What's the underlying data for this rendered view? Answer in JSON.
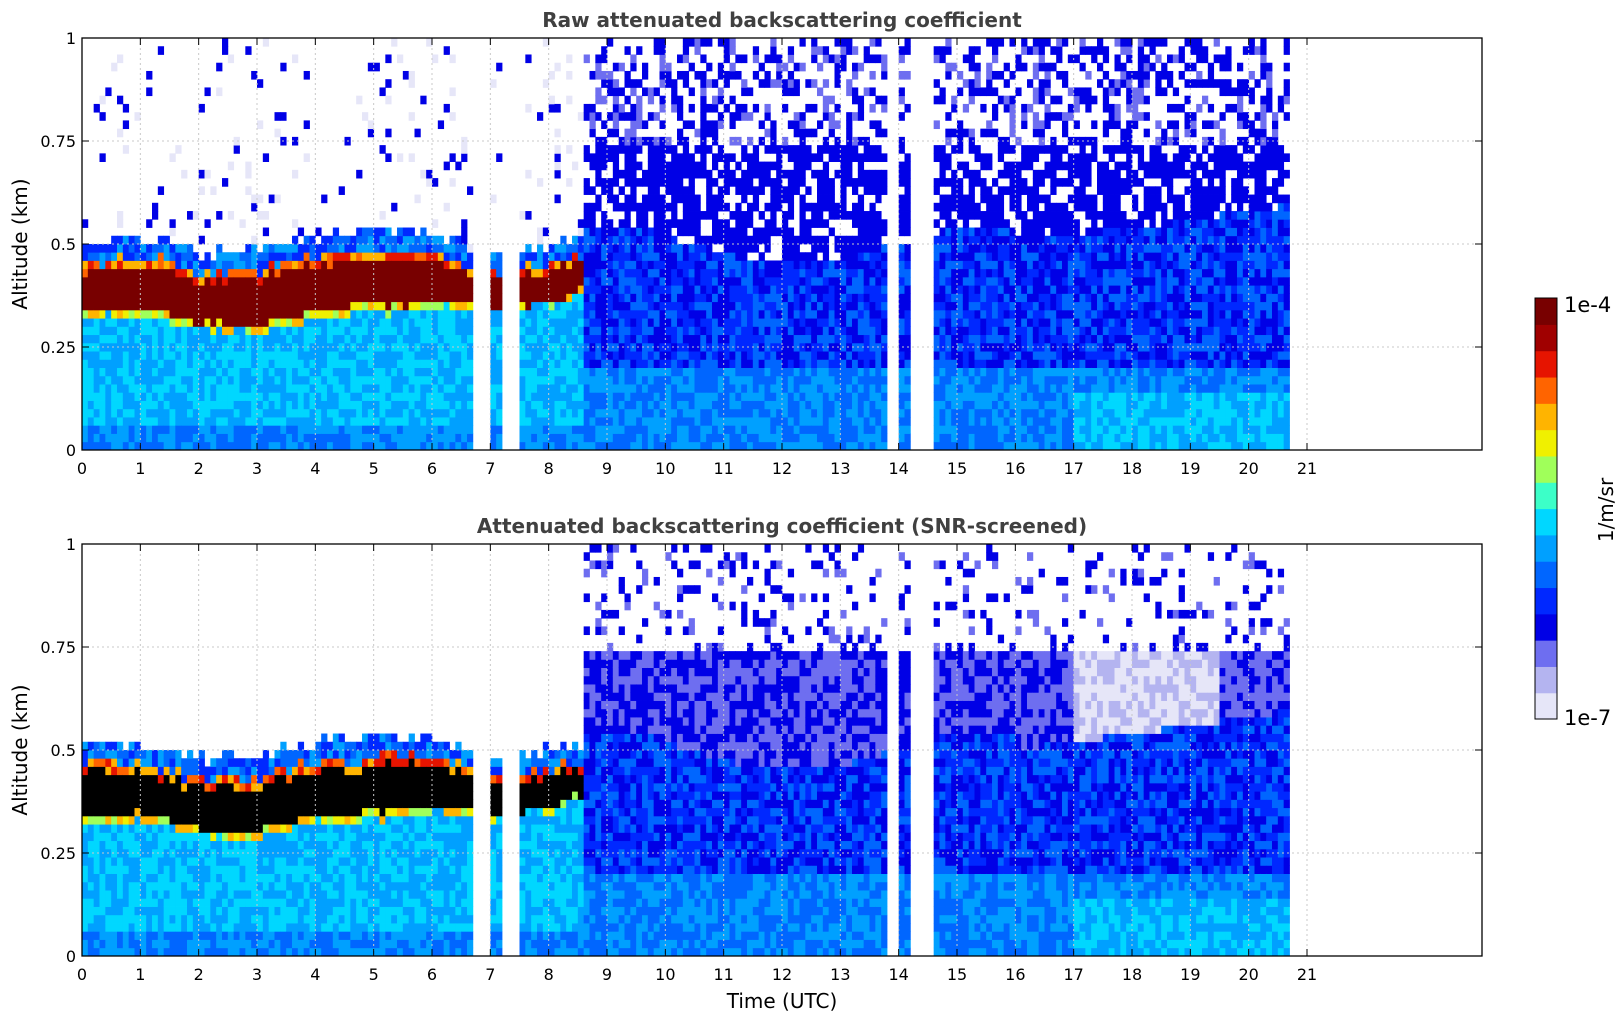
{
  "colors": {
    "nan": "#ffffff",
    "grid": "#c8c8c8",
    "title": "#404040",
    "above_scale": "#000000"
  },
  "chart_data": [
    {
      "type": "heatmap",
      "title": "Raw attenuated backscattering coefficient",
      "xlabel": "",
      "ylabel": "Altitude (km)",
      "xlim": [
        0,
        24
      ],
      "ylim": [
        0,
        1
      ],
      "xticks": [
        "0",
        "1",
        "2",
        "3",
        "4",
        "5",
        "6",
        "7",
        "8",
        "9",
        "10",
        "11",
        "12",
        "13",
        "14",
        "15",
        "16",
        "17",
        "18",
        "19",
        "20",
        "21"
      ],
      "yticks": [
        "0",
        "0.25",
        "0.5",
        "0.75",
        "1"
      ],
      "grid": true,
      "data_end_hour": 20.65,
      "missing_intervals": [
        [
          6.82,
          6.85
        ],
        [
          6.93,
          7.02
        ],
        [
          7.3,
          7.46
        ],
        [
          13.93,
          14.02
        ],
        [
          14.25,
          14.4
        ],
        [
          14.5,
          14.62
        ]
      ],
      "layer_base_km": [
        [
          0,
          0.32
        ],
        [
          1,
          0.33
        ],
        [
          2,
          0.29
        ],
        [
          3,
          0.28
        ],
        [
          4,
          0.32
        ],
        [
          5,
          0.33
        ],
        [
          6,
          0.35
        ],
        [
          7,
          0.33
        ],
        [
          8,
          0.35
        ],
        [
          8.5,
          0.38
        ]
      ],
      "layer_top_km": [
        [
          0,
          0.46
        ],
        [
          1,
          0.47
        ],
        [
          2,
          0.43
        ],
        [
          3,
          0.44
        ],
        [
          4,
          0.47
        ],
        [
          5,
          0.48
        ],
        [
          6,
          0.48
        ],
        [
          7,
          0.44
        ],
        [
          8,
          0.45
        ],
        [
          8.5,
          0.47
        ]
      ],
      "layer_end_hour": 8.55,
      "snr_screened": false
    },
    {
      "type": "heatmap",
      "title": "Attenuated backscattering coefficient (SNR-screened)",
      "xlabel": "Time (UTC)",
      "ylabel": "Altitude (km)",
      "xlim": [
        0,
        24
      ],
      "ylim": [
        0,
        1
      ],
      "xticks": [
        "0",
        "1",
        "2",
        "3",
        "4",
        "5",
        "6",
        "7",
        "8",
        "9",
        "10",
        "11",
        "12",
        "13",
        "14",
        "15",
        "16",
        "17",
        "18",
        "19",
        "20",
        "21"
      ],
      "yticks": [
        "0",
        "0.25",
        "0.5",
        "0.75",
        "1"
      ],
      "grid": true,
      "data_end_hour": 20.65,
      "missing_intervals": [
        [
          6.82,
          6.85
        ],
        [
          6.93,
          7.02
        ],
        [
          7.3,
          7.46
        ],
        [
          13.93,
          14.02
        ],
        [
          14.25,
          14.4
        ],
        [
          14.5,
          14.62
        ]
      ],
      "layer_base_km": [
        [
          0,
          0.32
        ],
        [
          1,
          0.33
        ],
        [
          2,
          0.29
        ],
        [
          3,
          0.28
        ],
        [
          4,
          0.32
        ],
        [
          5,
          0.33
        ],
        [
          6,
          0.35
        ],
        [
          7,
          0.33
        ],
        [
          8,
          0.35
        ],
        [
          8.5,
          0.38
        ]
      ],
      "layer_top_km": [
        [
          0,
          0.46
        ],
        [
          1,
          0.47
        ],
        [
          2,
          0.43
        ],
        [
          3,
          0.44
        ],
        [
          4,
          0.47
        ],
        [
          5,
          0.48
        ],
        [
          6,
          0.48
        ],
        [
          7,
          0.44
        ],
        [
          8,
          0.45
        ],
        [
          8.5,
          0.47
        ]
      ],
      "layer_end_hour": 8.55,
      "snr_screened": true
    }
  ],
  "colorbar": {
    "label": "1/m/sr",
    "scale": "log",
    "min_label": "1e-7",
    "max_label": "1e-4",
    "min": 1e-07,
    "max": 0.0001,
    "colormap": [
      "#e6e6f8",
      "#b4b4f0",
      "#6e6ef0",
      "#0000e6",
      "#0028ff",
      "#0066ff",
      "#00a0ff",
      "#00d7ff",
      "#3cffc8",
      "#a0ff5a",
      "#f0f000",
      "#ffb400",
      "#ff6400",
      "#e61400",
      "#a00000",
      "#780000"
    ]
  }
}
